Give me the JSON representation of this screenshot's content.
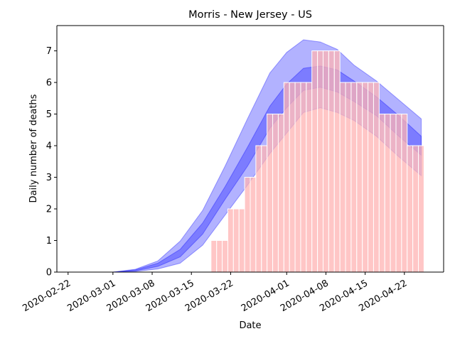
{
  "chart_data": {
    "type": "bar",
    "title": "Morris - New Jersey - US",
    "xlabel": "Date",
    "ylabel": "Daily number of deaths",
    "xlim": [
      "2020-02-20",
      "2020-04-29"
    ],
    "ylim": [
      0,
      7.8
    ],
    "x_ticks": [
      "2020-02-22",
      "2020-03-01",
      "2020-03-08",
      "2020-03-15",
      "2020-03-22",
      "2020-04-01",
      "2020-04-08",
      "2020-04-15",
      "2020-04-22"
    ],
    "y_ticks": [
      0,
      1,
      2,
      3,
      4,
      5,
      6,
      7
    ],
    "bar_color": "#ffb3b3",
    "bar_edge_color": "#ffffff",
    "band_color": "#0000ff",
    "grid": false,
    "series": [
      {
        "name": "",
        "type": "bar",
        "x": [
          "2020-03-19",
          "2020-03-20",
          "2020-03-21",
          "2020-03-22",
          "2020-03-23",
          "2020-03-24",
          "2020-03-25",
          "2020-03-26",
          "2020-03-27",
          "2020-03-28",
          "2020-03-29",
          "2020-03-30",
          "2020-03-31",
          "2020-04-01",
          "2020-04-02",
          "2020-04-03",
          "2020-04-04",
          "2020-04-05",
          "2020-04-06",
          "2020-04-07",
          "2020-04-08",
          "2020-04-09",
          "2020-04-10",
          "2020-04-11",
          "2020-04-12",
          "2020-04-13",
          "2020-04-14",
          "2020-04-15",
          "2020-04-16",
          "2020-04-17",
          "2020-04-18",
          "2020-04-19",
          "2020-04-20",
          "2020-04-21",
          "2020-04-22",
          "2020-04-23",
          "2020-04-24",
          "2020-04-25"
        ],
        "values": [
          1,
          1,
          1,
          2,
          2,
          2,
          3,
          3,
          4,
          4,
          5,
          5,
          5,
          6,
          6,
          6,
          6,
          6,
          7,
          7,
          7,
          7,
          7,
          6,
          6,
          6,
          6,
          6,
          6,
          6,
          5,
          5,
          5,
          5,
          5,
          4,
          4,
          4
        ]
      }
    ],
    "bands": [
      {
        "level": "outer",
        "opacity": 0.3,
        "x": [
          "2020-03-01",
          "2020-03-05",
          "2020-03-09",
          "2020-03-13",
          "2020-03-17",
          "2020-03-21",
          "2020-03-25",
          "2020-03-29",
          "2020-04-01",
          "2020-04-04",
          "2020-04-07",
          "2020-04-10",
          "2020-04-13",
          "2020-04-17",
          "2020-04-21",
          "2020-04-25"
        ],
        "lower": [
          0,
          0.02,
          0.1,
          0.28,
          0.85,
          1.8,
          2.75,
          3.75,
          4.4,
          5.05,
          5.2,
          5.05,
          4.8,
          4.3,
          3.65,
          3.05
        ],
        "upper": [
          0,
          0.09,
          0.35,
          0.98,
          1.95,
          3.35,
          4.85,
          6.3,
          6.95,
          7.35,
          7.28,
          7.05,
          6.55,
          6.05,
          5.45,
          4.85
        ]
      },
      {
        "level": "inner",
        "opacity": 0.3,
        "x": [
          "2020-03-01",
          "2020-03-05",
          "2020-03-09",
          "2020-03-13",
          "2020-03-17",
          "2020-03-21",
          "2020-03-25",
          "2020-03-29",
          "2020-04-01",
          "2020-04-04",
          "2020-04-07",
          "2020-04-10",
          "2020-04-13",
          "2020-04-17",
          "2020-04-21",
          "2020-04-25"
        ],
        "lower": [
          0,
          0.04,
          0.18,
          0.48,
          1.2,
          2.3,
          3.35,
          4.55,
          5.2,
          5.75,
          5.85,
          5.7,
          5.4,
          4.95,
          4.3,
          3.7
        ],
        "upper": [
          0,
          0.07,
          0.28,
          0.72,
          1.55,
          2.7,
          3.95,
          5.25,
          5.95,
          6.45,
          6.52,
          6.4,
          6.05,
          5.55,
          4.95,
          4.3
        ]
      }
    ]
  }
}
